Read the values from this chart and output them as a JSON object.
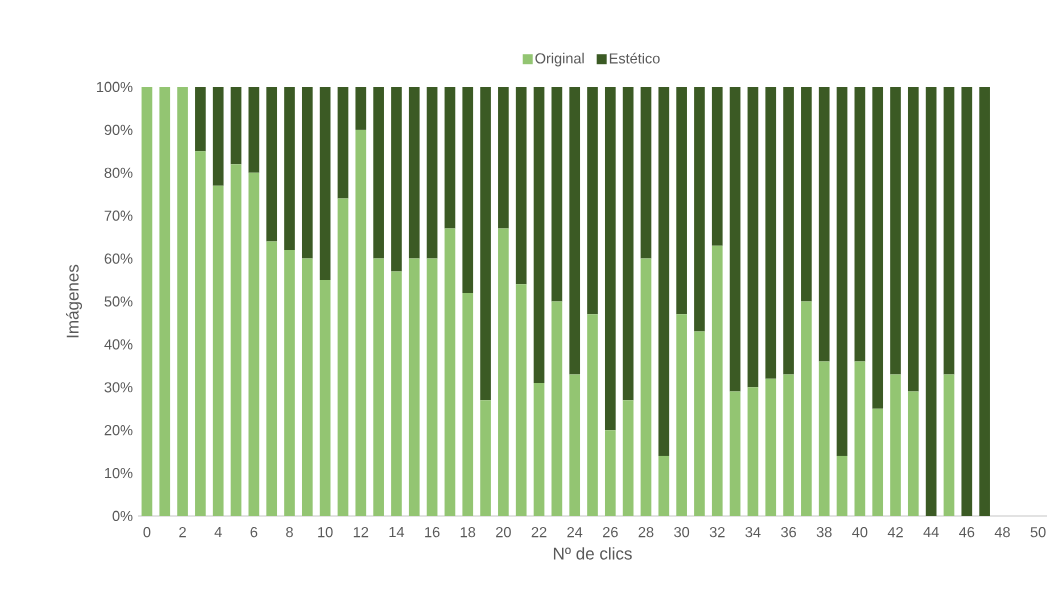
{
  "chart_data": {
    "type": "bar",
    "stacked": true,
    "legend": "top",
    "xlabel": "Nº de clics",
    "ylabel": "Imágenes",
    "categories": [
      "0",
      null,
      "2",
      null,
      "4",
      null,
      "6",
      null,
      "8",
      null,
      "10",
      null,
      "12",
      null,
      "14",
      null,
      "16",
      null,
      "18",
      null,
      "20",
      null,
      "22",
      null,
      "24",
      null,
      "26",
      null,
      "28",
      null,
      "30",
      null,
      "32",
      null,
      "34",
      null,
      "36",
      null,
      "38",
      null,
      "40",
      null,
      "42",
      null,
      "44",
      null,
      "46",
      null,
      "48",
      null,
      "50"
    ],
    "ylim": [
      0,
      100
    ],
    "yticks": [
      {
        "value": 0,
        "label": "0%"
      },
      {
        "value": 10,
        "label": "10%"
      },
      {
        "value": 20,
        "label": "20%"
      },
      {
        "value": 30,
        "label": "30%"
      },
      {
        "value": 40,
        "label": "40%"
      },
      {
        "value": 50,
        "label": "50%"
      },
      {
        "value": 60,
        "label": "60%"
      },
      {
        "value": 70,
        "label": "70%"
      },
      {
        "value": 80,
        "label": "80%"
      },
      {
        "value": 90,
        "label": "90%"
      },
      {
        "value": 100,
        "label": "100%"
      }
    ],
    "series": [
      {
        "name": "Original",
        "color": "#93c572",
        "values": [
          100,
          100,
          100,
          85,
          77,
          82,
          80,
          64,
          62,
          60,
          55,
          74,
          90,
          60,
          57,
          60,
          60,
          67,
          52,
          27,
          67,
          54,
          31,
          50,
          33,
          47,
          20,
          27,
          60,
          14,
          47,
          43,
          63,
          29,
          30,
          32,
          33,
          50,
          36,
          14,
          36,
          25,
          33,
          29,
          0,
          33,
          0,
          0,
          null,
          null,
          null
        ]
      },
      {
        "name": "Estético",
        "color": "#3b5a24",
        "values": [
          0,
          0,
          0,
          15,
          23,
          18,
          20,
          36,
          38,
          40,
          45,
          26,
          10,
          40,
          43,
          40,
          40,
          33,
          48,
          73,
          33,
          46,
          69,
          50,
          67,
          53,
          80,
          73,
          40,
          86,
          53,
          57,
          37,
          71,
          70,
          68,
          67,
          50,
          64,
          86,
          64,
          75,
          67,
          71,
          100,
          67,
          100,
          100,
          null,
          null,
          null
        ]
      }
    ]
  }
}
